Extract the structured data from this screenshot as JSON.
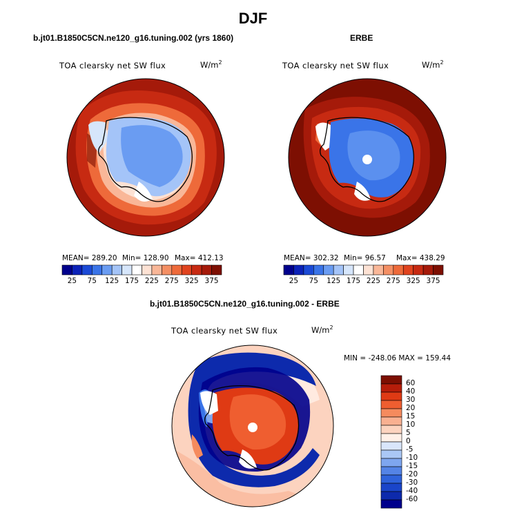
{
  "title": "DJF",
  "panels": {
    "model": {
      "heading": "b.jt01.B1850C5CN.ne120_g16.tuning.002 (yrs 1860)",
      "variable": "TOA clearsky net SW flux",
      "units_base": "W/m",
      "units_exp": "2",
      "mean": "MEAN= 289.20",
      "min": "Min= 128.90",
      "max": "Max= 412.13"
    },
    "obs": {
      "heading": "ERBE",
      "variable": "TOA clearsky net SW flux",
      "units_base": "W/m",
      "units_exp": "2",
      "mean": "MEAN= 302.32",
      "min": "Min= 96.57",
      "max": "Max= 438.29"
    },
    "diff": {
      "heading": "b.jt01.B1850C5CN.ne120_g16.tuning.002 - ERBE",
      "variable": "TOA clearsky net SW flux",
      "units_base": "W/m",
      "units_exp": "2",
      "stats": "MIN = -248.06 MAX = 159.44"
    }
  },
  "colorbar_abs": {
    "colors": [
      "#00008c",
      "#0b22b8",
      "#1b4ad6",
      "#3a74e8",
      "#6a9cf2",
      "#a4c4f8",
      "#d6e6fb",
      "#ffffff",
      "#fde2d4",
      "#f9b798",
      "#f48f64",
      "#ee6a3a",
      "#e0431e",
      "#c72a12",
      "#a51a0a",
      "#7d0f02"
    ],
    "ticks": [
      "25",
      "75",
      "125",
      "175",
      "225",
      "275",
      "325",
      "375"
    ]
  },
  "colorbar_diff": {
    "colors": [
      "#7d0f02",
      "#b61d0a",
      "#df3a14",
      "#ef5e30",
      "#f58b5e",
      "#f9b091",
      "#fcd3bf",
      "#fff0e8",
      "#d9e6fb",
      "#aac7f5",
      "#7ea6ef",
      "#5484e6",
      "#2f63db",
      "#1a45c9",
      "#0d2aac",
      "#00008c"
    ],
    "ticks": [
      "60",
      "40",
      "30",
      "20",
      "15",
      "10",
      "5",
      "0",
      "-5",
      "-10",
      "-15",
      "-20",
      "-30",
      "-40",
      "-60"
    ]
  },
  "icons": [
    "polar-stereographic-map"
  ]
}
